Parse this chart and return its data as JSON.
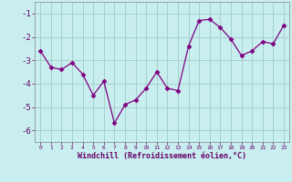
{
  "x": [
    0,
    1,
    2,
    3,
    4,
    5,
    6,
    7,
    8,
    9,
    10,
    11,
    12,
    13,
    14,
    15,
    16,
    17,
    18,
    19,
    20,
    21,
    22,
    23
  ],
  "y": [
    -2.6,
    -3.3,
    -3.4,
    -3.1,
    -3.6,
    -4.5,
    -3.9,
    -5.7,
    -4.9,
    -4.7,
    -4.2,
    -3.5,
    -4.2,
    -4.3,
    -2.4,
    -1.3,
    -1.25,
    -1.6,
    -2.1,
    -2.8,
    -2.6,
    -2.2,
    -2.3,
    -1.5
  ],
  "line_color": "#800080",
  "marker": "D",
  "bg_color": "#c8eef0",
  "grid_color": "#a0ccc8",
  "xlabel": "Windchill (Refroidissement éolien,°C)",
  "xlabel_color": "#660066",
  "tick_color": "#660066",
  "ylim": [
    -6.5,
    -0.5
  ],
  "xlim": [
    -0.5,
    23.5
  ],
  "yticks": [
    -6,
    -5,
    -4,
    -3,
    -2,
    -1
  ],
  "xticks": [
    0,
    1,
    2,
    3,
    4,
    5,
    6,
    7,
    8,
    9,
    10,
    11,
    12,
    13,
    14,
    15,
    16,
    17,
    18,
    19,
    20,
    21,
    22,
    23
  ],
  "markersize": 2.5,
  "linewidth": 0.9
}
